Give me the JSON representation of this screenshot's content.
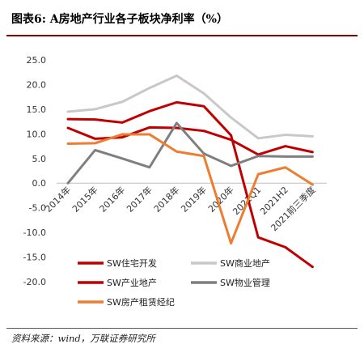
{
  "header": {
    "title": "图表6:  A房地产行业各子板块净利率（%）"
  },
  "footer": {
    "source": "资料来源：wind，万联证券研究所"
  },
  "chart_data": {
    "type": "line",
    "title": "A房地产行业各子板块净利率（%）",
    "xlabel": "",
    "ylabel": "",
    "categories": [
      "2014年",
      "2015年",
      "2016年",
      "2017年",
      "2018年",
      "2019年",
      "2020年",
      "2021Q1",
      "2021H2",
      "2021前三季度"
    ],
    "ylim": [
      -20,
      25
    ],
    "yticks": [
      "25.0",
      "20.0",
      "15.0",
      "10.0",
      "5.0",
      "0.0",
      "-5.0",
      "-10.0",
      "-15.0",
      "-20.0"
    ],
    "grid": false,
    "legend": "bottom",
    "series": [
      {
        "name": "SW住宅开发",
        "color": "#c00000",
        "values": [
          11.2,
          9.0,
          9.3,
          11.3,
          11.2,
          10.6,
          8.8,
          5.8,
          7.5,
          6.3
        ]
      },
      {
        "name": "SW商业地产",
        "color": "#c8c8c8",
        "values": [
          14.5,
          15.0,
          16.5,
          19.3,
          21.8,
          18.2,
          13.3,
          9.1,
          9.8,
          9.5
        ]
      },
      {
        "name": "SW产业地产",
        "color": "#c00000",
        "values": [
          13.0,
          12.9,
          12.3,
          14.6,
          16.4,
          15.6,
          9.7,
          -11.0,
          -13.0,
          -17.0
        ]
      },
      {
        "name": "SW物业管理",
        "color": "#7f7f7f",
        "values": [
          0.0,
          6.7,
          5.0,
          3.2,
          12.2,
          6.0,
          3.5,
          5.5,
          5.4,
          5.4
        ]
      },
      {
        "name": "SW房产租赁经纪",
        "color": "#ed7d31",
        "values": [
          8.0,
          8.1,
          9.9,
          9.9,
          6.4,
          5.5,
          -12.2,
          1.8,
          3.2,
          -0.3
        ]
      }
    ]
  }
}
